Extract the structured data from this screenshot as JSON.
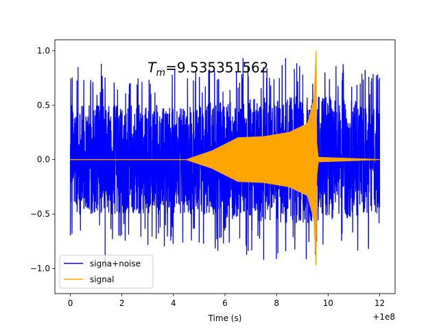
{
  "chart_data": {
    "type": "line",
    "title": "",
    "annotation": {
      "prefix": "T",
      "subscript": "m",
      "value_text": "=9.535351562",
      "x": 3.0,
      "y": 0.8
    },
    "xlabel": "Time (s)",
    "ylabel": "",
    "x_offset_label": "+1e8",
    "xlim": [
      -0.6,
      12.6
    ],
    "ylim": [
      -1.23,
      1.1
    ],
    "x_ticks": [
      0,
      2,
      4,
      6,
      8,
      10,
      12
    ],
    "x_tick_labels": [
      "0",
      "2",
      "4",
      "6",
      "8",
      "10",
      "12"
    ],
    "y_ticks": [
      -1.0,
      -0.5,
      0.0,
      0.5,
      1.0
    ],
    "y_tick_labels": [
      "−1.0",
      "−0.5",
      "0.0",
      "0.5",
      "1.0"
    ],
    "grid": false,
    "legend_position": "lower-left",
    "series": [
      {
        "name": "signa+noise",
        "color": "#0000ff",
        "x_range": [
          0,
          12
        ],
        "noise_envelope": [
          [
            0,
            0.5
          ],
          [
            4.5,
            0.5
          ],
          [
            6.5,
            0.55
          ],
          [
            9.5,
            0.6
          ],
          [
            12,
            0.5
          ]
        ],
        "peaks": [
          {
            "x": 1.35,
            "y": -1.0
          },
          {
            "x": 0.3,
            "y": 0.85
          },
          {
            "x": 1.2,
            "y": 0.88
          },
          {
            "x": 4.05,
            "y": 0.83
          },
          {
            "x": 5.4,
            "y": 0.83
          },
          {
            "x": 6.7,
            "y": 0.93
          },
          {
            "x": 7.5,
            "y": -0.92
          },
          {
            "x": 8.35,
            "y": 0.93
          },
          {
            "x": 9.5,
            "y": -0.87
          }
        ]
      },
      {
        "name": "signal",
        "color": "#ffa500",
        "x_range": [
          0,
          12
        ],
        "merger_time": 9.535351562,
        "envelope": [
          [
            0,
            0.0
          ],
          [
            4.5,
            0.0
          ],
          [
            5.5,
            0.08
          ],
          [
            6.5,
            0.2
          ],
          [
            7.5,
            0.21
          ],
          [
            8.5,
            0.25
          ],
          [
            9.2,
            0.33
          ],
          [
            9.45,
            0.55
          ],
          [
            9.535,
            1.0
          ],
          [
            9.56,
            0.15
          ],
          [
            9.62,
            0.02
          ],
          [
            12,
            0.0
          ]
        ]
      }
    ]
  }
}
